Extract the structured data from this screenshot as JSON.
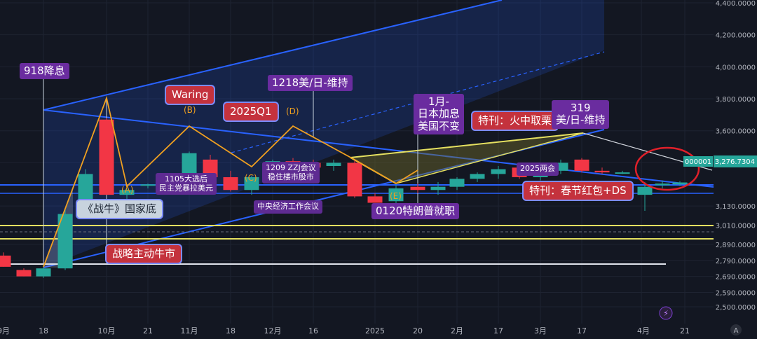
{
  "chart_data": {
    "type": "candlestick",
    "title": "",
    "xlabel": "",
    "ylabel": "",
    "ylim": [
      2440,
      4400
    ],
    "x_ticks": [
      "9月",
      "18",
      "10月",
      "21",
      "11月",
      "18",
      "12月",
      "16",
      "2025",
      "20",
      "2月",
      "17",
      "3月",
      "17",
      "4月",
      "21"
    ],
    "y_ticks": [
      "4,400.0000",
      "4,200.0000",
      "4,000.0000",
      "3,800.0000",
      "3,600.0000",
      "3,400.0000",
      "3,276.7304",
      "3,130.0000",
      "3,010.0000",
      "2,890.0000",
      "2,790.0000",
      "2,690.0000",
      "2,590.0000",
      "2,500.0000"
    ],
    "last_price": "3,276.7304",
    "price_tag": "000001",
    "candles": [
      {
        "o": 2820,
        "h": 2840,
        "l": 2750,
        "c": 2750
      },
      {
        "o": 2730,
        "h": 2740,
        "l": 2690,
        "c": 2690
      },
      {
        "o": 2690,
        "h": 2760,
        "l": 2680,
        "c": 2740
      },
      {
        "o": 2740,
        "h": 3110,
        "l": 2730,
        "c": 3080
      },
      {
        "o": 3170,
        "h": 3360,
        "l": 3140,
        "c": 3330
      },
      {
        "o": 3670,
        "h": 3680,
        "l": 3200,
        "c": 3200
      },
      {
        "o": 3200,
        "h": 3240,
        "l": 3150,
        "c": 3230
      },
      {
        "o": 3260,
        "h": 3270,
        "l": 3240,
        "c": 3265
      },
      {
        "o": 3230,
        "h": 3300,
        "l": 3220,
        "c": 3290
      },
      {
        "o": 3270,
        "h": 3470,
        "l": 3240,
        "c": 3460
      },
      {
        "o": 3420,
        "h": 3450,
        "l": 3300,
        "c": 3310
      },
      {
        "o": 3310,
        "h": 3350,
        "l": 3220,
        "c": 3230
      },
      {
        "o": 3230,
        "h": 3320,
        "l": 3200,
        "c": 3310
      },
      {
        "o": 3320,
        "h": 3420,
        "l": 3300,
        "c": 3410
      },
      {
        "o": 3410,
        "h": 3430,
        "l": 3360,
        "c": 3400
      },
      {
        "o": 3400,
        "h": 3420,
        "l": 3350,
        "c": 3370
      },
      {
        "o": 3380,
        "h": 3420,
        "l": 3350,
        "c": 3400
      },
      {
        "o": 3400,
        "h": 3420,
        "l": 3180,
        "c": 3190
      },
      {
        "o": 3190,
        "h": 3210,
        "l": 3150,
        "c": 3150
      },
      {
        "o": 3160,
        "h": 3260,
        "l": 3140,
        "c": 3240
      },
      {
        "o": 3250,
        "h": 3270,
        "l": 3210,
        "c": 3230
      },
      {
        "o": 3230,
        "h": 3280,
        "l": 3200,
        "c": 3250
      },
      {
        "o": 3250,
        "h": 3310,
        "l": 3230,
        "c": 3300
      },
      {
        "o": 3300,
        "h": 3340,
        "l": 3280,
        "c": 3330
      },
      {
        "o": 3330,
        "h": 3380,
        "l": 3300,
        "c": 3360
      },
      {
        "o": 3370,
        "h": 3390,
        "l": 3300,
        "c": 3310
      },
      {
        "o": 3310,
        "h": 3380,
        "l": 3290,
        "c": 3350
      },
      {
        "o": 3350,
        "h": 3420,
        "l": 3330,
        "c": 3400
      },
      {
        "o": 3420,
        "h": 3430,
        "l": 3340,
        "c": 3350
      },
      {
        "o": 3350,
        "h": 3370,
        "l": 3330,
        "c": 3340
      },
      {
        "o": 3340,
        "h": 3350,
        "l": 3330,
        "c": 3340
      },
      {
        "o": 3200,
        "h": 3280,
        "l": 3100,
        "c": 3250
      },
      {
        "o": 3260,
        "h": 3290,
        "l": 3240,
        "c": 3270
      },
      {
        "o": 3265,
        "h": 3285,
        "l": 3255,
        "c": 3277
      }
    ],
    "annotations": [
      {
        "text": "918降息",
        "style": "purple"
      },
      {
        "text": "Waring",
        "style": "red"
      },
      {
        "text": "2025Q1",
        "style": "red"
      },
      {
        "text": "1218美/日-维持",
        "style": "purple"
      },
      {
        "text": "1月-\n日本加息\n美国不变",
        "style": "purple"
      },
      {
        "text": "特刊：火中取栗",
        "style": "red"
      },
      {
        "text": "319\n美/日-维持",
        "style": "purple"
      },
      {
        "text": "1105大选后\n民主党暴拉美元",
        "style": "purple-sm"
      },
      {
        "text": "1209 ZZJ会议\n稳住楼市股市",
        "style": "purple-sm"
      },
      {
        "text": "中央经济工作会议",
        "style": "purple-sm"
      },
      {
        "text": "2025两会",
        "style": "purple-sm"
      },
      {
        "text": "《战牛》国家底",
        "style": "gray"
      },
      {
        "text": "0120特朗普就职",
        "style": "purple"
      },
      {
        "text": "特刊：春节红包+DS",
        "style": "red"
      },
      {
        "text": "战略主动牛市",
        "style": "red"
      }
    ],
    "points": [
      "(A)",
      "(B)",
      "(C)",
      "(D)",
      "(E)"
    ],
    "colors": {
      "up": "#26a69a",
      "down": "#f23645",
      "wave": "#f0a020",
      "trend": "#2962ff",
      "wedge": "#e5e060",
      "background": "#131722"
    }
  }
}
